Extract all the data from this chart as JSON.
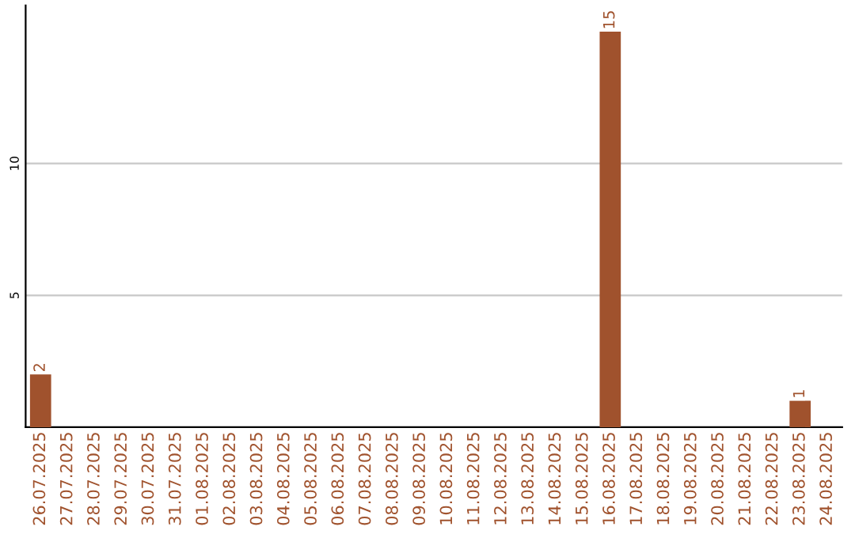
{
  "chart_data": {
    "type": "bar",
    "categories": [
      "26.07.2025",
      "27.07.2025",
      "28.07.2025",
      "29.07.2025",
      "30.07.2025",
      "31.07.2025",
      "01.08.2025",
      "02.08.2025",
      "03.08.2025",
      "04.08.2025",
      "05.08.2025",
      "06.08.2025",
      "07.08.2025",
      "08.08.2025",
      "09.08.2025",
      "10.08.2025",
      "11.08.2025",
      "12.08.2025",
      "13.08.2025",
      "14.08.2025",
      "15.08.2025",
      "16.08.2025",
      "17.08.2025",
      "18.08.2025",
      "19.08.2025",
      "20.08.2025",
      "21.08.2025",
      "22.08.2025",
      "23.08.2025",
      "24.08.2025"
    ],
    "values": [
      2,
      0,
      0,
      0,
      0,
      0,
      0,
      0,
      0,
      0,
      0,
      0,
      0,
      0,
      0,
      0,
      0,
      0,
      0,
      0,
      0,
      15,
      0,
      0,
      0,
      0,
      0,
      0,
      1,
      0
    ],
    "value_labels": [
      "2",
      null,
      null,
      null,
      null,
      null,
      null,
      null,
      null,
      null,
      null,
      null,
      null,
      null,
      null,
      null,
      null,
      null,
      null,
      null,
      null,
      "15",
      null,
      null,
      null,
      null,
      null,
      null,
      "1",
      null
    ],
    "color": "#a0522d",
    "ylim": [
      0,
      16
    ],
    "yticks": [
      5,
      10
    ],
    "grid": "y"
  }
}
